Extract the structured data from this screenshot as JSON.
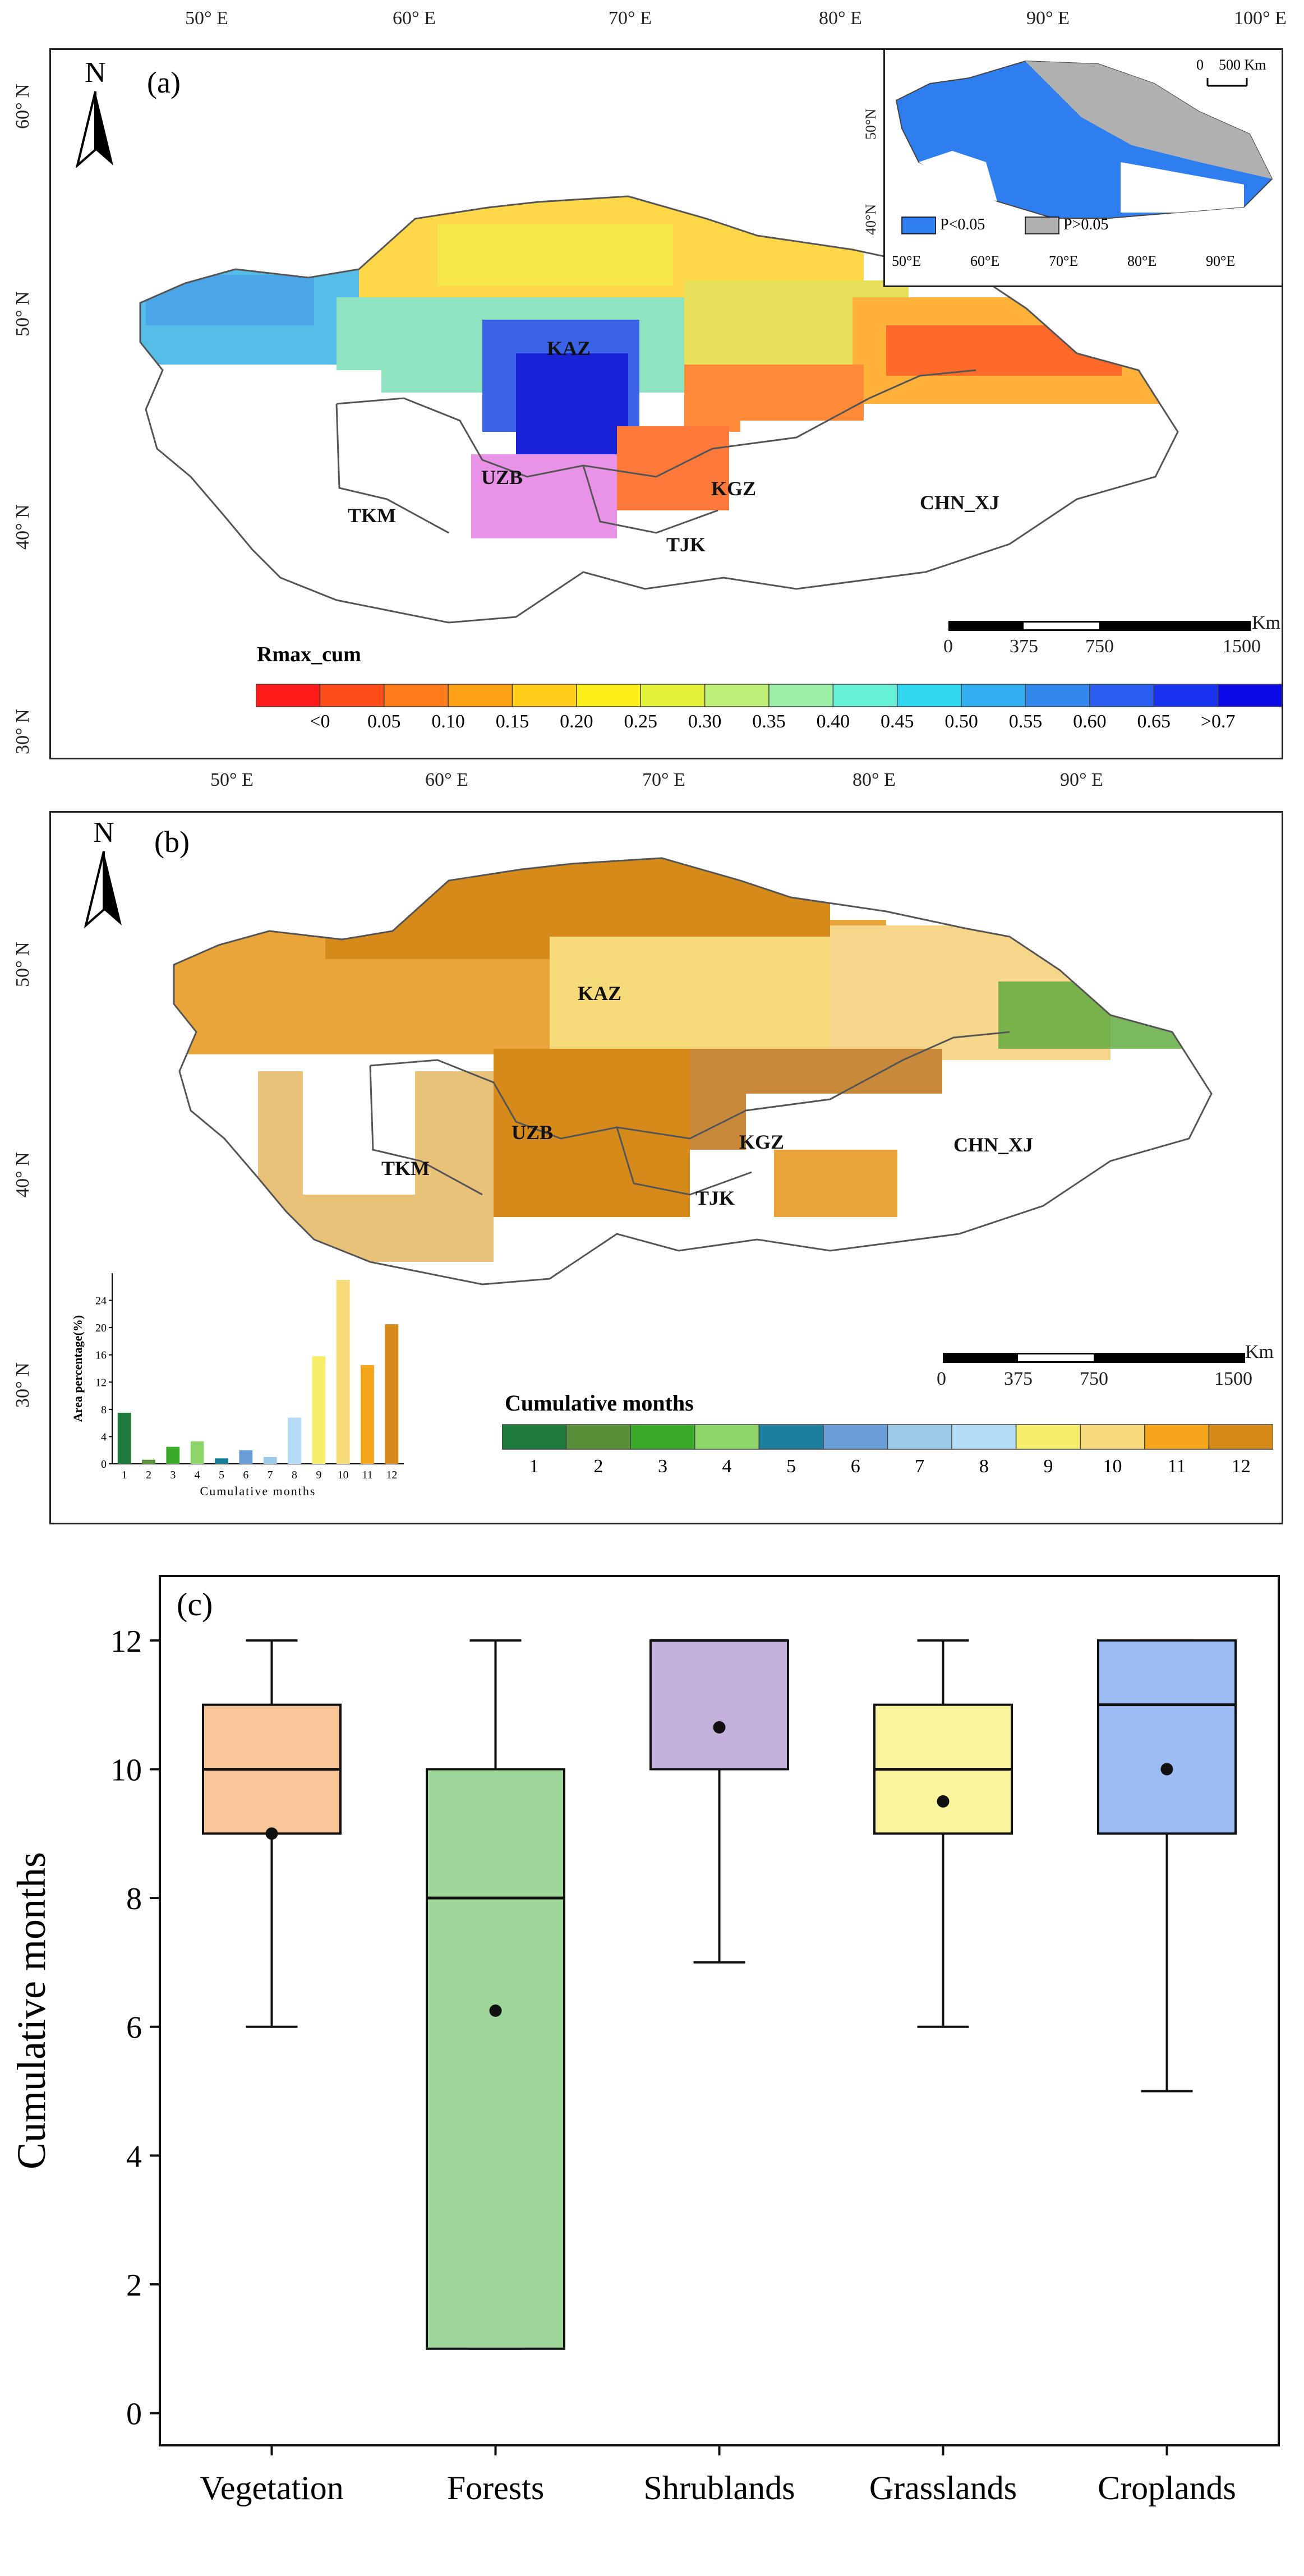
{
  "panel_a": {
    "letter": "(a)",
    "north": "N",
    "top_ticks": [
      "50° E",
      "60° E",
      "70° E",
      "80° E",
      "90° E",
      "100° E"
    ],
    "left_ticks": [
      "60° N",
      "50° N",
      "40° N",
      "30° N"
    ],
    "regions": {
      "kaz": "KAZ",
      "uzb": "UZB",
      "kgz": "KGZ",
      "tkm": "TKM",
      "tjk": "TJK",
      "chn": "CHN_XJ"
    },
    "legend_title": "Rmax_cum",
    "legend_labels": [
      "<0",
      "0.05",
      "0.10",
      "0.15",
      "0.20",
      "0.25",
      "0.30",
      "0.35",
      "0.40",
      "0.45",
      "0.50",
      "0.55",
      "0.60",
      "0.65",
      ">0.7"
    ],
    "legend_colors": [
      "#ff1a1a",
      "#ff4d1a",
      "#ff7a1a",
      "#ffa21a",
      "#ffcc1a",
      "#ffee1a",
      "#e2f03a",
      "#bff07a",
      "#9cf0a8",
      "#66f0d8",
      "#33d6f0",
      "#33aef0",
      "#3388f0",
      "#2a5ef0",
      "#1a33f0",
      "#0a0ae8"
    ],
    "scale_bar": {
      "unit": "Km",
      "labels": [
        "0",
        "375",
        "750",
        "1500"
      ]
    },
    "inset": {
      "scale": "500 Km",
      "scale_zero": "0",
      "lon_ticks": [
        "50°E",
        "60°E",
        "70°E",
        "80°E",
        "90°E"
      ],
      "lat_ticks": [
        "50°N",
        "40°N"
      ],
      "legend": [
        {
          "label": "P<0.05",
          "color": "#2f7ef0"
        },
        {
          "label": "P>0.05",
          "color": "#b0b0b0"
        }
      ]
    }
  },
  "panel_b": {
    "letter": "(b)",
    "north": "N",
    "top_ticks": [
      "50° E",
      "60° E",
      "70° E",
      "80° E",
      "90° E"
    ],
    "left_ticks": [
      "50° N",
      "40° N",
      "30° N"
    ],
    "regions": {
      "kaz": "KAZ",
      "uzb": "UZB",
      "kgz": "KGZ",
      "tkm": "TKM",
      "tjk": "TJK",
      "chn": "CHN_XJ"
    },
    "legend_title": "Cumulative months",
    "legend_labels": [
      "1",
      "2",
      "3",
      "4",
      "5",
      "6",
      "7",
      "8",
      "9",
      "10",
      "11",
      "12"
    ],
    "legend_colors": [
      "#1e7a3a",
      "#5a8f3a",
      "#3aaa2a",
      "#8fd66a",
      "#1a7f9a",
      "#6a9ed6",
      "#9ccae6",
      "#b4dcf6",
      "#f6ee6a",
      "#f6da7a",
      "#f6a41a",
      "#d68a1a"
    ],
    "scale_bar": {
      "unit": "Km",
      "labels": [
        "0",
        "375",
        "750",
        "1500"
      ]
    },
    "histogram": {
      "ylabel": "Area percentage(%)",
      "xlabel": "Cumulative months",
      "yticks": [
        "0",
        "4",
        "8",
        "12",
        "16",
        "20",
        "24"
      ],
      "categories": [
        "1",
        "2",
        "3",
        "4",
        "5",
        "6",
        "7",
        "8",
        "9",
        "10",
        "11",
        "12"
      ],
      "values": [
        7.5,
        0.6,
        2.5,
        3.3,
        0.8,
        2.0,
        1.0,
        6.8,
        15.8,
        27.0,
        14.5,
        20.5
      ]
    }
  },
  "chart_data": {
    "type": "box",
    "panel_letter": "(c)",
    "ylabel": "Cumulative months",
    "ylim": [
      -0.5,
      13
    ],
    "yticks": [
      0,
      2,
      4,
      6,
      8,
      10,
      12
    ],
    "categories": [
      "Vegetation",
      "Forests",
      "Shrublands",
      "Grasslands",
      "Croplands"
    ],
    "boxes": [
      {
        "name": "Vegetation",
        "min": 6,
        "q1": 9,
        "median": 10,
        "q3": 11,
        "max": 12,
        "mean": 9.0,
        "color": "#f9c69a"
      },
      {
        "name": "Forests",
        "min": 1,
        "q1": 1,
        "median": 8,
        "q3": 10,
        "max": 12,
        "mean": 6.25,
        "color": "#9ed69a"
      },
      {
        "name": "Shrublands",
        "min": 7,
        "q1": 10,
        "median": 12,
        "q3": 12,
        "max": 12,
        "mean": 10.65,
        "color": "#c4b2dc"
      },
      {
        "name": "Grasslands",
        "min": 6,
        "q1": 9,
        "median": 10,
        "q3": 11,
        "max": 12,
        "mean": 9.5,
        "color": "#fbf5a0"
      },
      {
        "name": "Croplands",
        "min": 5,
        "q1": 9,
        "median": 11,
        "q3": 12,
        "max": 12,
        "mean": 10.0,
        "color": "#9dbcf3"
      }
    ]
  }
}
